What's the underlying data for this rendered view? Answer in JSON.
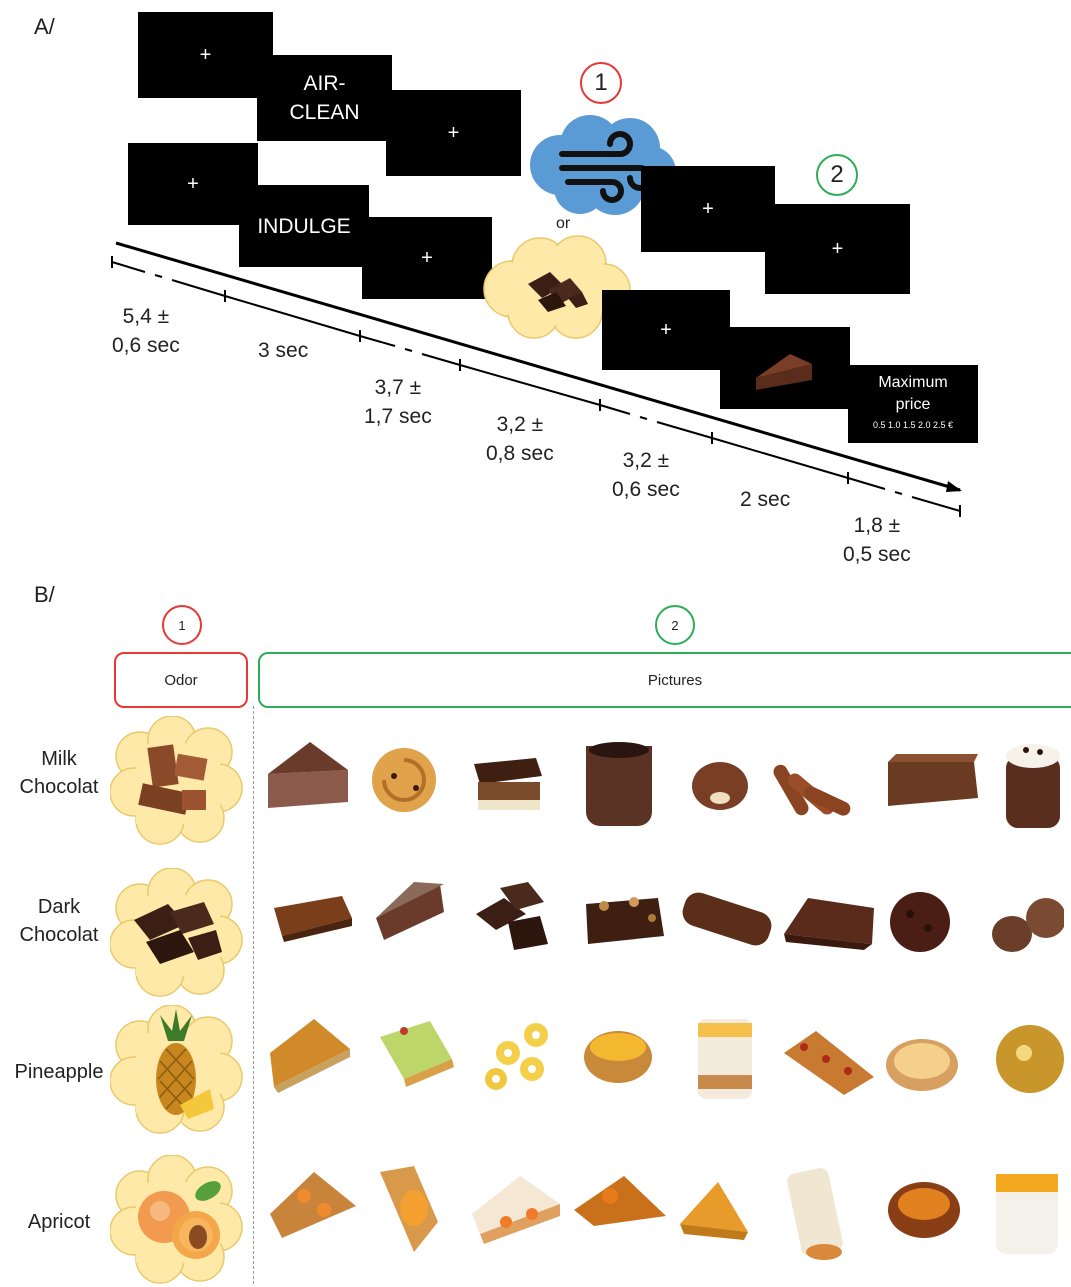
{
  "panel_a": {
    "label": "A/",
    "screens": {
      "plus": "+",
      "air_clean": "AIR-\nCLEAN",
      "indulge": "INDULGE",
      "max_price_title": "Maximum\nprice",
      "price_scale": "0.5 1.0 1.5 2.0 2.5 €"
    },
    "or_label": "or",
    "step1": "1",
    "step2": "2",
    "timeline": [
      "5,4 ±\n0,6 sec",
      "3 sec",
      "3,7 ±\n1,7 sec",
      "3,2 ±\n0,8 sec",
      "3,2 ±\n0,6 sec",
      "2 sec",
      "1,8 ±\n0,5 sec"
    ]
  },
  "panel_b": {
    "label": "B/",
    "step1": "1",
    "step2": "2",
    "odor_header": "Odor",
    "pictures_header": "Pictures",
    "rows": [
      {
        "name": "Milk\nChocolat",
        "icon": "milk-chocolate-icon"
      },
      {
        "name": "Dark\nChocolat",
        "icon": "dark-chocolate-icon"
      },
      {
        "name": "Pineapple",
        "icon": "pineapple-icon"
      },
      {
        "name": "Apricot",
        "icon": "apricot-icon"
      }
    ],
    "colors": {
      "cloud": "#ffe9a8",
      "red": "#e53935",
      "green": "#2ead57",
      "blue_cloud": "#5b9bd5"
    }
  }
}
